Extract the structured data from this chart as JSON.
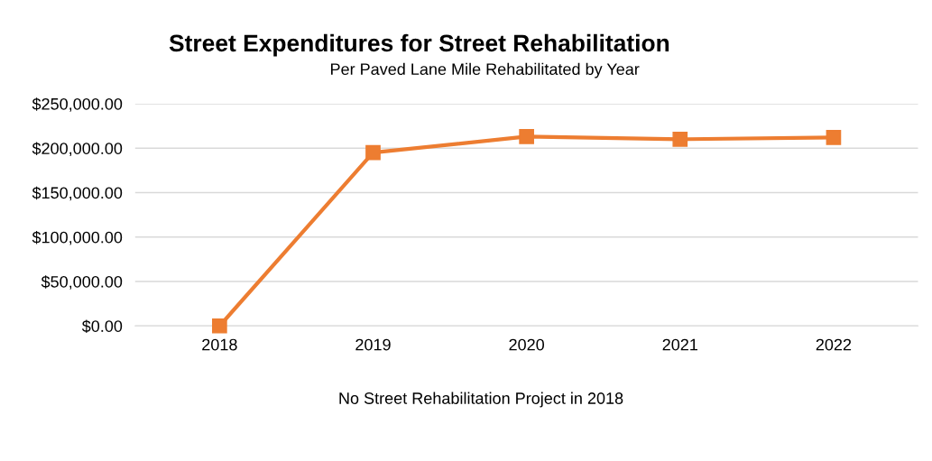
{
  "chart_data": {
    "type": "line",
    "title": "Street Expenditures for Street Rehabilitation",
    "subtitle": "Per Paved Lane Mile Rehabilitated by Year",
    "categories": [
      "2018",
      "2019",
      "2020",
      "2021",
      "2022"
    ],
    "series": [
      {
        "color": "#ed7d31",
        "values": [
          0,
          195000,
          213000,
          210000,
          212000
        ]
      }
    ],
    "ylim": [
      0,
      250000
    ],
    "yticks": [
      {
        "value": 0,
        "label": "$0.00"
      },
      {
        "value": 50000,
        "label": "$50,000.00"
      },
      {
        "value": 100000,
        "label": "$100,000.00"
      },
      {
        "value": 150000,
        "label": "$150,000.00"
      },
      {
        "value": 200000,
        "label": "$200,000.00"
      },
      {
        "value": 250000,
        "label": "$250,000.00"
      }
    ],
    "grid": "y",
    "marker": "square",
    "line_style": "solid",
    "annotations": [
      "No Street Rehabilitation Project in 2018"
    ]
  }
}
